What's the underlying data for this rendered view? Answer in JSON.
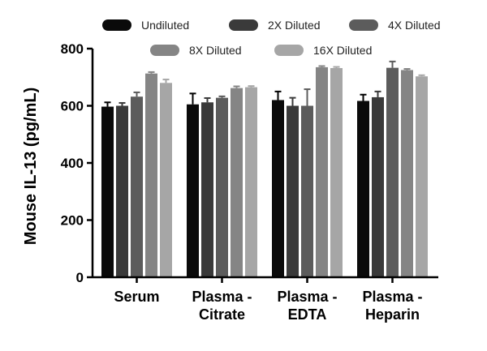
{
  "chart_data": {
    "type": "bar",
    "title": "",
    "xlabel": "",
    "ylabel": "Mouse IL-13 (pg/mL)",
    "ylim": [
      0,
      800
    ],
    "yticks": [
      "0",
      "200",
      "400",
      "600",
      "800"
    ],
    "ytick_values": [
      0,
      200,
      400,
      600,
      800
    ],
    "grid": false,
    "legend_position": "top",
    "categories": [
      [
        "Serum"
      ],
      [
        "Plasma -",
        "Citrate"
      ],
      [
        "Plasma -",
        "EDTA"
      ],
      [
        "Plasma -",
        "Heparin"
      ]
    ],
    "series": [
      {
        "name": "Undiluted",
        "color": "#0a0a0a",
        "values": [
          597,
          605,
          620,
          617
        ],
        "errors": [
          15,
          38,
          30,
          22
        ]
      },
      {
        "name": "2X Diluted",
        "color": "#3a3a3a",
        "values": [
          600,
          612,
          600,
          630
        ],
        "errors": [
          10,
          15,
          28,
          20
        ]
      },
      {
        "name": "4X Diluted",
        "color": "#5c5c5c",
        "values": [
          632,
          628,
          600,
          733
        ],
        "errors": [
          15,
          5,
          58,
          22
        ]
      },
      {
        "name": "8X Diluted",
        "color": "#858585",
        "values": [
          713,
          662,
          735,
          725
        ],
        "errors": [
          5,
          6,
          4,
          4
        ]
      },
      {
        "name": "16X Diluted",
        "color": "#a6a6a6",
        "values": [
          680,
          665,
          732,
          703
        ],
        "errors": [
          12,
          4,
          4,
          4
        ]
      }
    ]
  }
}
